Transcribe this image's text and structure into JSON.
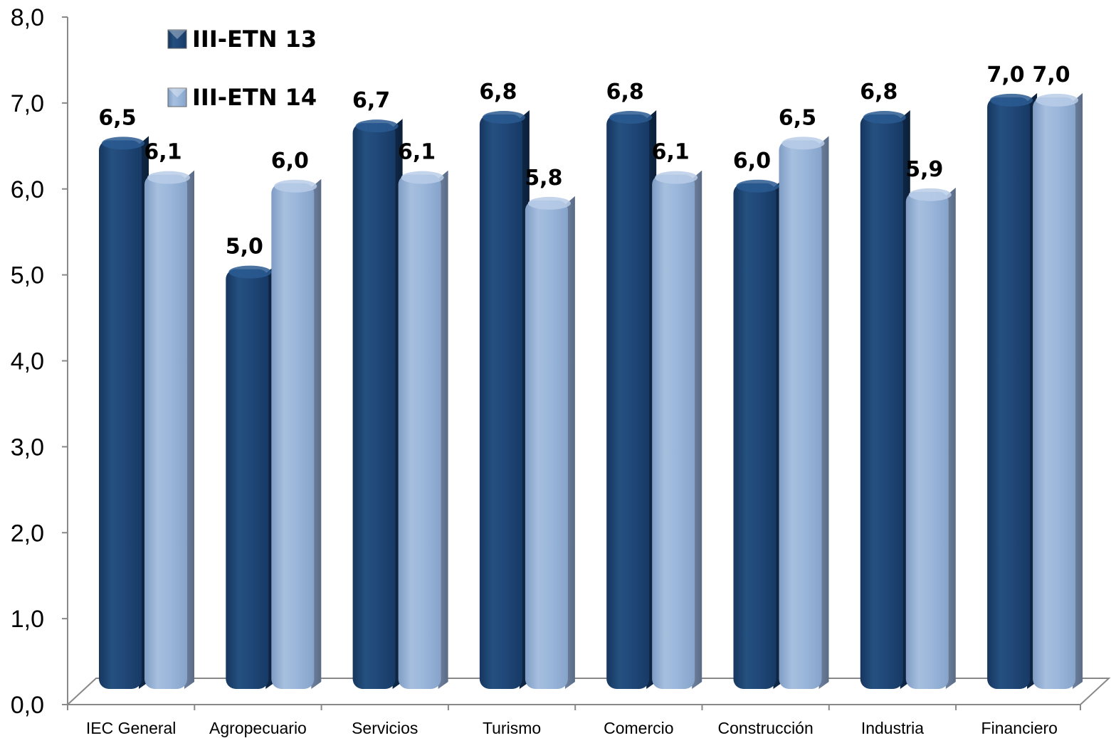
{
  "chart_data": {
    "type": "bar",
    "categories": [
      "IEC General",
      "Agropecuario",
      "Servicios",
      "Turismo",
      "Comercio",
      "Construcción",
      "Industria",
      "Financiero"
    ],
    "series": [
      {
        "name": "III-ETN 13",
        "color": "#1f497d",
        "values": [
          6.5,
          5.0,
          6.7,
          6.8,
          6.8,
          6.0,
          6.8,
          7.0
        ],
        "labels": [
          "6,5",
          "5,0",
          "6,7",
          "6,8",
          "6,8",
          "6,0",
          "6,8",
          "7,0"
        ]
      },
      {
        "name": "III-ETN 14",
        "color": "#95b3d7",
        "values": [
          6.1,
          6.0,
          6.1,
          5.8,
          6.1,
          6.5,
          5.9,
          7.0
        ],
        "labels": [
          "6,1",
          "6,0",
          "6,1",
          "5,8",
          "6,1",
          "6,5",
          "5,9",
          "7,0"
        ]
      }
    ],
    "ylim": [
      0,
      8
    ],
    "yticks": [
      "0,0",
      "1,0",
      "2,0",
      "3,0",
      "4,0",
      "5,0",
      "6,0",
      "7,0",
      "8,0"
    ],
    "legend_position": "top-left",
    "grid": false,
    "style": "3d-bar"
  }
}
